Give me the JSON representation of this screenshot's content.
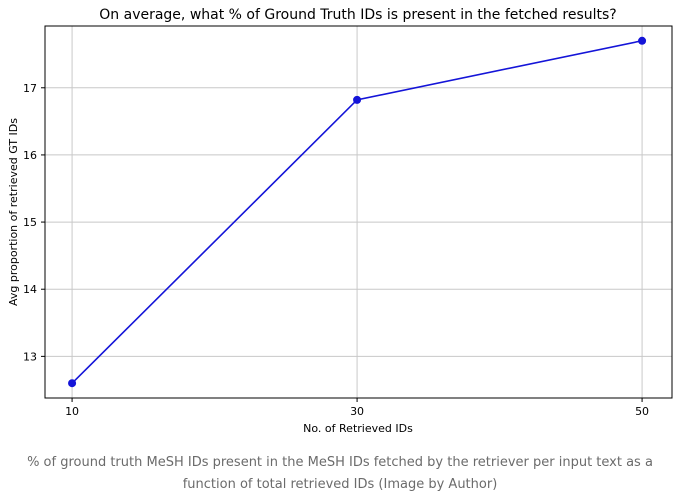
{
  "chart_data": {
    "type": "line",
    "title": "On average, what % of Ground Truth IDs is present in the fetched results?",
    "xlabel": "No. of Retrieved IDs",
    "ylabel": "Avg proportion of retrieved GT IDs",
    "x": [
      10,
      30,
      50
    ],
    "xticks": [
      "10",
      "30",
      "50"
    ],
    "yticks": [
      "13",
      "14",
      "15",
      "16",
      "17"
    ],
    "series": [
      {
        "values": [
          12.6,
          16.82,
          17.7
        ],
        "color": "#1414d8"
      }
    ],
    "xlim": [
      8.1,
      52.1
    ],
    "ylim": [
      12.38,
      17.92
    ],
    "grid": true,
    "marker": "circle"
  },
  "caption": "% of ground truth MeSH IDs present in the MeSH IDs fetched by the retriever per input text as a function of total retrieved IDs (Image by Author)"
}
